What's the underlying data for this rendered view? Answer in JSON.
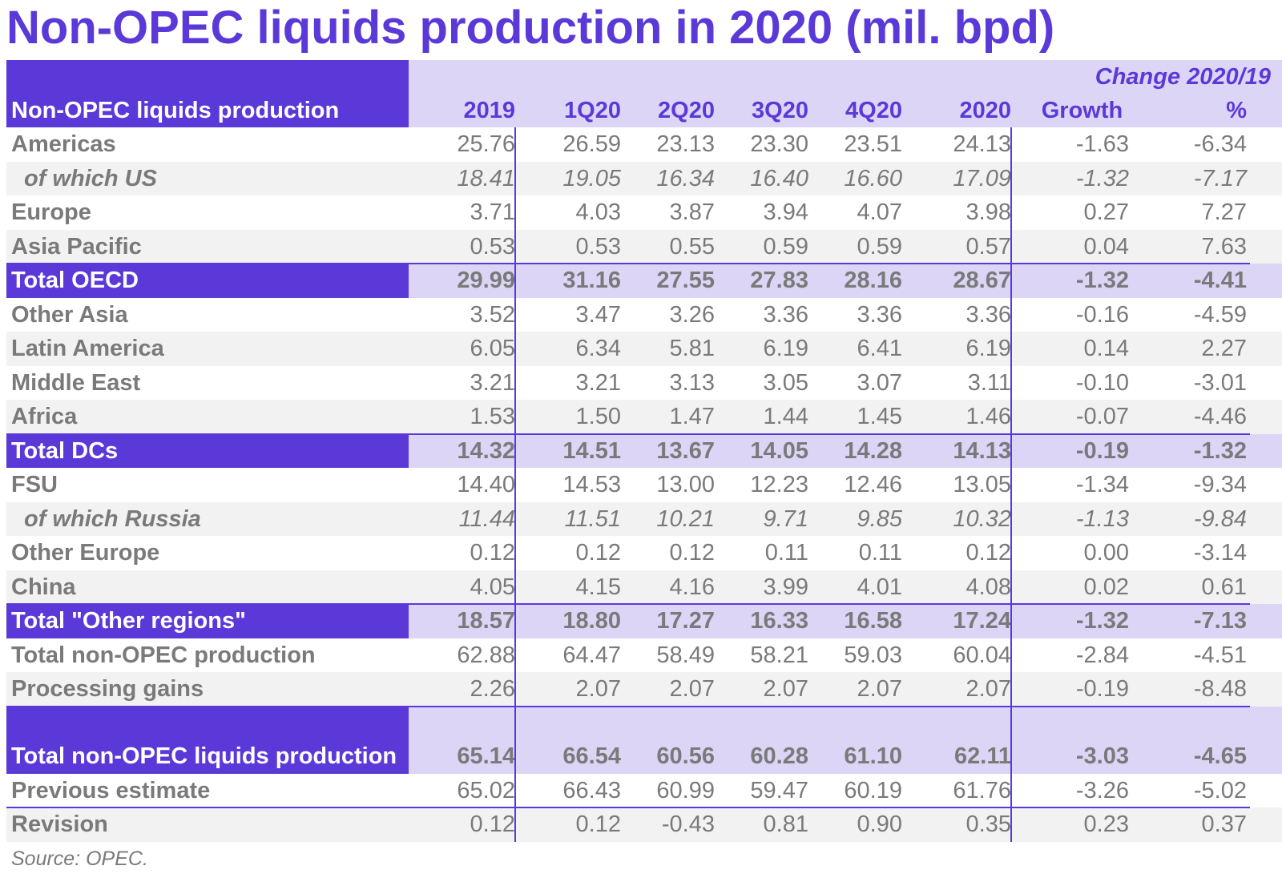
{
  "title": "Non-OPEC liquids production in 2020 (mil. bpd)",
  "source": "Source: OPEC.",
  "chart_data": {
    "type": "table",
    "title": "Non-OPEC liquids production in 2020 (mil. bpd)",
    "header_label": "Non-OPEC liquids production",
    "change_label": "Change 2020/19",
    "columns": [
      "2019",
      "1Q20",
      "2Q20",
      "3Q20",
      "4Q20",
      "2020",
      "Growth",
      "%"
    ],
    "rows": [
      {
        "label": "Americas",
        "values": [
          "25.76",
          "26.59",
          "23.13",
          "23.30",
          "23.51",
          "24.13",
          "-1.63",
          "-6.34"
        ]
      },
      {
        "label": "of which US",
        "values": [
          "18.41",
          "19.05",
          "16.34",
          "16.40",
          "16.60",
          "17.09",
          "-1.32",
          "-7.17"
        ]
      },
      {
        "label": "Europe",
        "values": [
          "3.71",
          "4.03",
          "3.87",
          "3.94",
          "4.07",
          "3.98",
          "0.27",
          "7.27"
        ]
      },
      {
        "label": "Asia Pacific",
        "values": [
          "0.53",
          "0.53",
          "0.55",
          "0.59",
          "0.59",
          "0.57",
          "0.04",
          "7.63"
        ]
      },
      {
        "label": "Total OECD",
        "values": [
          "29.99",
          "31.16",
          "27.55",
          "27.83",
          "28.16",
          "28.67",
          "-1.32",
          "-4.41"
        ]
      },
      {
        "label": "Other Asia",
        "values": [
          "3.52",
          "3.47",
          "3.26",
          "3.36",
          "3.36",
          "3.36",
          "-0.16",
          "-4.59"
        ]
      },
      {
        "label": "Latin America",
        "values": [
          "6.05",
          "6.34",
          "5.81",
          "6.19",
          "6.41",
          "6.19",
          "0.14",
          "2.27"
        ]
      },
      {
        "label": "Middle East",
        "values": [
          "3.21",
          "3.21",
          "3.13",
          "3.05",
          "3.07",
          "3.11",
          "-0.10",
          "-3.01"
        ]
      },
      {
        "label": "Africa",
        "values": [
          "1.53",
          "1.50",
          "1.47",
          "1.44",
          "1.45",
          "1.46",
          "-0.07",
          "-4.46"
        ]
      },
      {
        "label": "Total DCs",
        "values": [
          "14.32",
          "14.51",
          "13.67",
          "14.05",
          "14.28",
          "14.13",
          "-0.19",
          "-1.32"
        ]
      },
      {
        "label": "FSU",
        "values": [
          "14.40",
          "14.53",
          "13.00",
          "12.23",
          "12.46",
          "13.05",
          "-1.34",
          "-9.34"
        ]
      },
      {
        "label": "of which Russia",
        "values": [
          "11.44",
          "11.51",
          "10.21",
          "9.71",
          "9.85",
          "10.32",
          "-1.13",
          "-9.84"
        ]
      },
      {
        "label": "Other Europe",
        "values": [
          "0.12",
          "0.12",
          "0.12",
          "0.11",
          "0.11",
          "0.12",
          "0.00",
          "-3.14"
        ]
      },
      {
        "label": "China",
        "values": [
          "4.05",
          "4.15",
          "4.16",
          "3.99",
          "4.01",
          "4.08",
          "0.02",
          "0.61"
        ]
      },
      {
        "label": "Total \"Other regions\"",
        "values": [
          "18.57",
          "18.80",
          "17.27",
          "16.33",
          "16.58",
          "17.24",
          "-1.32",
          "-7.13"
        ]
      },
      {
        "label": "Total non-OPEC production",
        "values": [
          "62.88",
          "64.47",
          "58.49",
          "58.21",
          "59.03",
          "60.04",
          "-2.84",
          "-4.51"
        ]
      },
      {
        "label": "Processing gains",
        "values": [
          "2.26",
          "2.07",
          "2.07",
          "2.07",
          "2.07",
          "2.07",
          "-0.19",
          "-8.48"
        ]
      },
      {
        "label": "Total non-OPEC liquids production",
        "values": [
          "65.14",
          "66.54",
          "60.56",
          "60.28",
          "61.10",
          "62.11",
          "-3.03",
          "-4.65"
        ]
      },
      {
        "label": "Previous estimate",
        "values": [
          "65.02",
          "66.43",
          "60.99",
          "59.47",
          "60.19",
          "61.76",
          "-3.26",
          "-5.02"
        ]
      },
      {
        "label": "Revision",
        "values": [
          "0.12",
          "0.12",
          "-0.43",
          "0.81",
          "0.90",
          "0.35",
          "0.23",
          "0.37"
        ]
      }
    ]
  }
}
